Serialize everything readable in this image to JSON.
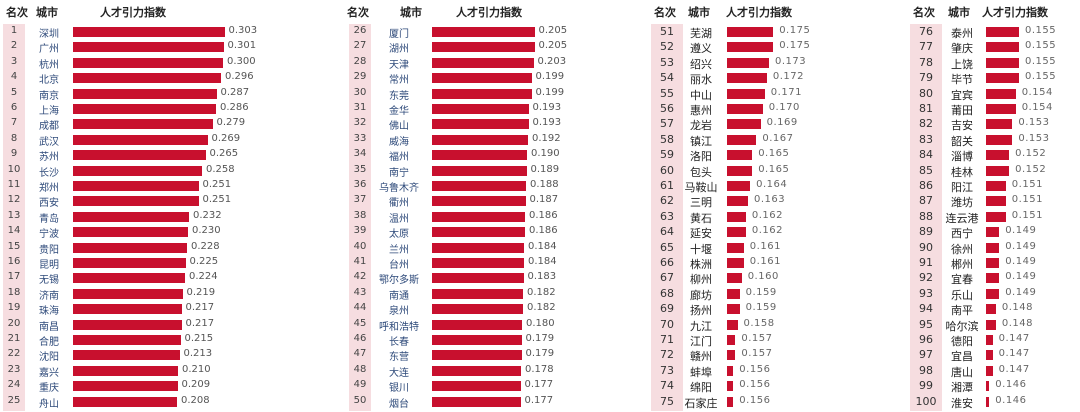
{
  "headers": {
    "rank": "名次",
    "city": "城市",
    "index": "人才引力指数"
  },
  "colors": {
    "bar": "#c8102e",
    "rank_bg": "#f6dde0"
  },
  "chart_data": {
    "type": "bar",
    "orientation": "horizontal",
    "title": "",
    "xlabel": "人才引力指数",
    "ylabel": "城市",
    "grid": false,
    "panels": [
      {
        "ranks": [
          1,
          2,
          3,
          4,
          5,
          6,
          7,
          8,
          9,
          10,
          11,
          12,
          13,
          14,
          15,
          16,
          17,
          18,
          19,
          20,
          21,
          22,
          23,
          24,
          25
        ],
        "cities": [
          "深圳",
          "广州",
          "杭州",
          "北京",
          "南京",
          "上海",
          "成都",
          "武汉",
          "苏州",
          "长沙",
          "郑州",
          "西安",
          "青岛",
          "宁波",
          "贵阳",
          "昆明",
          "无锡",
          "济南",
          "珠海",
          "南昌",
          "合肥",
          "沈阳",
          "嘉兴",
          "重庆",
          "舟山"
        ],
        "values": [
          0.303,
          0.301,
          0.3,
          0.296,
          0.287,
          0.286,
          0.279,
          0.269,
          0.265,
          0.258,
          0.251,
          0.251,
          0.232,
          0.23,
          0.228,
          0.225,
          0.224,
          0.219,
          0.217,
          0.217,
          0.215,
          0.213,
          0.21,
          0.209,
          0.208
        ],
        "labels": [
          "0.303",
          "0.301",
          "0.300",
          "0.296",
          "0.287",
          "0.286",
          "0.279",
          "0.269",
          "0.265",
          "0.258",
          "0.251",
          "0.251",
          "0.232",
          "0.230",
          "0.228",
          "0.225",
          "0.224",
          "0.219",
          "0.217",
          "0.217",
          "0.215",
          "0.213",
          "0.210",
          "0.209",
          "0.208"
        ]
      },
      {
        "ranks": [
          26,
          27,
          28,
          29,
          30,
          31,
          32,
          33,
          34,
          35,
          36,
          37,
          38,
          39,
          40,
          41,
          42,
          43,
          44,
          45,
          46,
          47,
          48,
          49,
          50
        ],
        "cities": [
          "厦门",
          "湖州",
          "天津",
          "常州",
          "东莞",
          "金华",
          "佛山",
          "威海",
          "福州",
          "南宁",
          "乌鲁木齐",
          "衢州",
          "温州",
          "太原",
          "兰州",
          "台州",
          "鄂尔多斯",
          "南通",
          "泉州",
          "呼和浩特",
          "长春",
          "东营",
          "大连",
          "银川",
          "烟台"
        ],
        "values": [
          0.205,
          0.205,
          0.203,
          0.199,
          0.199,
          0.193,
          0.193,
          0.192,
          0.19,
          0.189,
          0.188,
          0.187,
          0.186,
          0.186,
          0.184,
          0.184,
          0.183,
          0.182,
          0.182,
          0.18,
          0.179,
          0.179,
          0.178,
          0.177,
          0.177
        ],
        "labels": [
          "0.205",
          "0.205",
          "0.203",
          "0.199",
          "0.199",
          "0.193",
          "0.193",
          "0.192",
          "0.190",
          "0.189",
          "0.188",
          "0.187",
          "0.186",
          "0.186",
          "0.184",
          "0.184",
          "0.183",
          "0.182",
          "0.182",
          "0.180",
          "0.179",
          "0.179",
          "0.178",
          "0.177",
          "0.177"
        ]
      },
      {
        "ranks": [
          51,
          52,
          53,
          54,
          55,
          56,
          57,
          58,
          59,
          60,
          61,
          62,
          63,
          64,
          65,
          66,
          67,
          68,
          69,
          70,
          71,
          72,
          73,
          74,
          75
        ],
        "cities": [
          "芜湖",
          "遵义",
          "绍兴",
          "丽水",
          "中山",
          "惠州",
          "龙岩",
          "镇江",
          "洛阳",
          "包头",
          "马鞍山",
          "三明",
          "黄石",
          "延安",
          "十堰",
          "株洲",
          "柳州",
          "廊坊",
          "扬州",
          "九江",
          "江门",
          "赣州",
          "蚌埠",
          "绵阳",
          "石家庄"
        ],
        "values": [
          0.175,
          0.175,
          0.173,
          0.172,
          0.171,
          0.17,
          0.169,
          0.167,
          0.165,
          0.165,
          0.164,
          0.163,
          0.162,
          0.162,
          0.161,
          0.161,
          0.16,
          0.159,
          0.159,
          0.158,
          0.157,
          0.157,
          0.156,
          0.156,
          0.156
        ],
        "labels": [
          "0.175",
          "0.175",
          "0.173",
          "0.172",
          "0.171",
          "0.170",
          "0.169",
          "0.167",
          "0.165",
          "0.165",
          "0.164",
          "0.163",
          "0.162",
          "0.162",
          "0.161",
          "0.161",
          "0.160",
          "0.159",
          "0.159",
          "0.158",
          "0.157",
          "0.157",
          "0.156",
          "0.156",
          "0.156"
        ]
      },
      {
        "ranks": [
          76,
          77,
          78,
          79,
          80,
          81,
          82,
          83,
          84,
          85,
          86,
          87,
          88,
          89,
          90,
          91,
          92,
          93,
          94,
          95,
          96,
          97,
          98,
          99,
          100
        ],
        "cities": [
          "泰州",
          "肇庆",
          "上饶",
          "毕节",
          "宜宾",
          "莆田",
          "吉安",
          "韶关",
          "淄博",
          "桂林",
          "阳江",
          "潍坊",
          "连云港",
          "西宁",
          "徐州",
          "郴州",
          "宜春",
          "乐山",
          "南平",
          "哈尔滨",
          "德阳",
          "宜昌",
          "唐山",
          "湘潭",
          "淮安"
        ],
        "values": [
          0.155,
          0.155,
          0.155,
          0.155,
          0.154,
          0.154,
          0.153,
          0.153,
          0.152,
          0.152,
          0.151,
          0.151,
          0.151,
          0.149,
          0.149,
          0.149,
          0.149,
          0.149,
          0.148,
          0.148,
          0.147,
          0.147,
          0.147,
          0.146,
          0.146
        ],
        "labels": [
          "0.155",
          "0.155",
          "0.155",
          "0.155",
          "0.154",
          "0.154",
          "0.153",
          "0.153",
          "0.152",
          "0.152",
          "0.151",
          "0.151",
          "0.151",
          "0.149",
          "0.149",
          "0.149",
          "0.149",
          "0.149",
          "0.148",
          "0.148",
          "0.147",
          "0.147",
          "0.147",
          "0.146",
          "0.146"
        ]
      }
    ]
  }
}
